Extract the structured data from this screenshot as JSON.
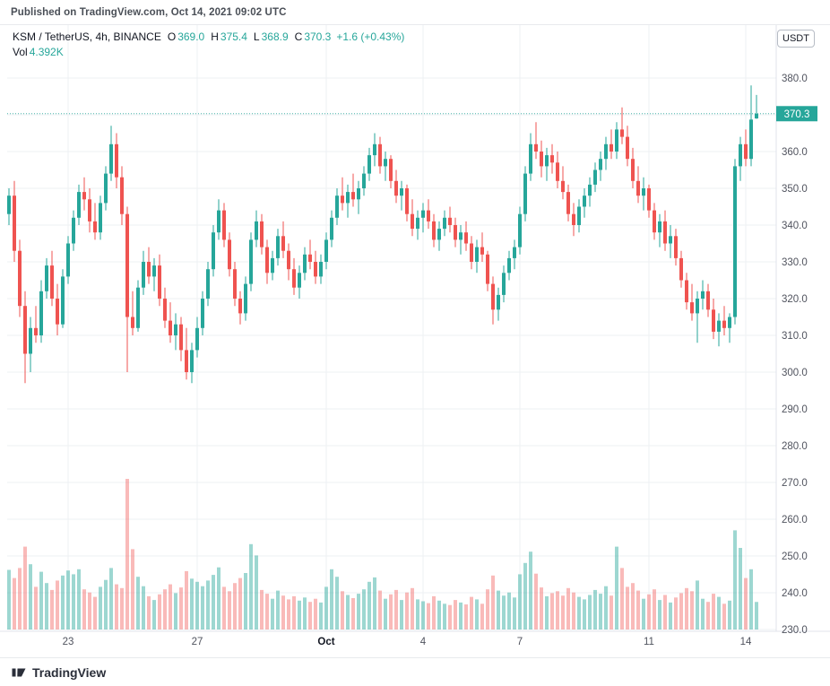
{
  "header": {
    "published_text": "Published on TradingView.com, Oct 14, 2021 09:02 UTC"
  },
  "legend": {
    "title": "KSM / TetherUS, 4h, BINANCE",
    "ohlc": [
      {
        "label": "O",
        "value": "369.0"
      },
      {
        "label": "H",
        "value": "375.4"
      },
      {
        "label": "L",
        "value": "368.9"
      },
      {
        "label": "C",
        "value": "370.3"
      }
    ],
    "change": "+1.6 (+0.43%)",
    "volume_label": "Vol",
    "volume_value": "4.392K"
  },
  "price_axis": {
    "currency_button": "USDT",
    "last_price_badge": "370.3"
  },
  "footer": {
    "brand": "TradingView"
  },
  "colors": {
    "up": "#26a69a",
    "down": "#ef5350",
    "vol_up": "rgba(38,166,154,0.45)",
    "vol_down": "rgba(239,83,80,0.40)",
    "grid": "#eef0f3",
    "axis_line": "#e0e3eb",
    "axis_text": "#50535e",
    "major_text": "#131722",
    "badge": "#26a69a",
    "badge_text": "#ffffff"
  },
  "chart_data": {
    "type": "candlestick",
    "title": "KSM / TetherUS, 4h, BINANCE",
    "price_axis": {
      "min": 230,
      "max": 380,
      "step": 10,
      "unit": "USDT"
    },
    "last_price": 370.3,
    "x_ticks": [
      {
        "i": 11,
        "label": "23"
      },
      {
        "i": 35,
        "label": "27"
      },
      {
        "i": 59,
        "label": "Oct",
        "major": true
      },
      {
        "i": 77,
        "label": "4"
      },
      {
        "i": 95,
        "label": "7"
      },
      {
        "i": 119,
        "label": "11"
      },
      {
        "i": 137,
        "label": "14"
      }
    ],
    "candles": [
      [
        343,
        350,
        340,
        348,
        9500
      ],
      [
        348,
        352,
        330,
        333,
        8200
      ],
      [
        333,
        336,
        315,
        318,
        9800
      ],
      [
        318,
        322,
        297,
        305,
        13200
      ],
      [
        305,
        315,
        300,
        312,
        10400
      ],
      [
        312,
        318,
        308,
        310,
        6800
      ],
      [
        310,
        325,
        308,
        322,
        9200
      ],
      [
        322,
        331,
        320,
        329,
        7400
      ],
      [
        329,
        333,
        318,
        320,
        6300
      ],
      [
        320,
        324,
        310,
        313,
        7800
      ],
      [
        313,
        328,
        312,
        326,
        8600
      ],
      [
        326,
        337,
        324,
        335,
        9400
      ],
      [
        335,
        344,
        333,
        342,
        8800
      ],
      [
        342,
        351,
        340,
        349,
        9600
      ],
      [
        349,
        353,
        344,
        347,
        6400
      ],
      [
        347,
        350,
        338,
        341,
        5900
      ],
      [
        341,
        346,
        336,
        338,
        5200
      ],
      [
        338,
        348,
        336,
        346,
        6800
      ],
      [
        346,
        356,
        344,
        354,
        7900
      ],
      [
        354,
        367,
        352,
        362,
        9800
      ],
      [
        362,
        365,
        350,
        353,
        7200
      ],
      [
        353,
        356,
        340,
        343,
        6600
      ],
      [
        343,
        345,
        300,
        315,
        24000
      ],
      [
        315,
        322,
        310,
        312,
        12800
      ],
      [
        312,
        325,
        311,
        323,
        8400
      ],
      [
        323,
        333,
        321,
        330,
        6900
      ],
      [
        330,
        334,
        324,
        326,
        5300
      ],
      [
        326,
        331,
        322,
        329,
        4700
      ],
      [
        329,
        332,
        318,
        320,
        5600
      ],
      [
        320,
        323,
        312,
        314,
        6400
      ],
      [
        314,
        319,
        308,
        310,
        7200
      ],
      [
        310,
        316,
        306,
        313,
        5800
      ],
      [
        313,
        315,
        303,
        306,
        6700
      ],
      [
        306,
        312,
        298,
        300,
        9300
      ],
      [
        300,
        308,
        297,
        306,
        8100
      ],
      [
        306,
        315,
        304,
        312,
        7600
      ],
      [
        312,
        322,
        310,
        320,
        6900
      ],
      [
        320,
        330,
        318,
        328,
        7800
      ],
      [
        328,
        340,
        326,
        338,
        8700
      ],
      [
        338,
        347,
        336,
        344,
        9900
      ],
      [
        344,
        346,
        334,
        336,
        6800
      ],
      [
        336,
        338,
        326,
        328,
        6100
      ],
      [
        328,
        330,
        318,
        320,
        7400
      ],
      [
        320,
        322,
        313,
        316,
        8200
      ],
      [
        316,
        326,
        314,
        324,
        9000
      ],
      [
        324,
        338,
        322,
        336,
        13600
      ],
      [
        336,
        344,
        334,
        341,
        11800
      ],
      [
        341,
        343,
        332,
        334,
        6300
      ],
      [
        334,
        336,
        324,
        327,
        5700
      ],
      [
        327,
        333,
        325,
        331,
        4900
      ],
      [
        331,
        339,
        329,
        337,
        6200
      ],
      [
        337,
        341,
        331,
        333,
        5400
      ],
      [
        333,
        335,
        325,
        328,
        4800
      ],
      [
        328,
        331,
        321,
        323,
        5300
      ],
      [
        323,
        329,
        320,
        327,
        4600
      ],
      [
        327,
        334,
        325,
        332,
        5100
      ],
      [
        332,
        336,
        328,
        330,
        4400
      ],
      [
        330,
        333,
        324,
        326,
        4900
      ],
      [
        326,
        332,
        324,
        330,
        4300
      ],
      [
        330,
        338,
        328,
        336,
        6800
      ],
      [
        336,
        344,
        334,
        342,
        9600
      ],
      [
        342,
        350,
        340,
        348,
        8400
      ],
      [
        348,
        353,
        344,
        346,
        6100
      ],
      [
        346,
        351,
        342,
        349,
        5500
      ],
      [
        349,
        354,
        345,
        347,
        5000
      ],
      [
        347,
        352,
        343,
        350,
        5700
      ],
      [
        350,
        356,
        348,
        354,
        6400
      ],
      [
        354,
        361,
        352,
        359,
        7600
      ],
      [
        359,
        365,
        356,
        362,
        8300
      ],
      [
        362,
        364,
        354,
        356,
        6200
      ],
      [
        356,
        360,
        352,
        358,
        4900
      ],
      [
        358,
        359,
        350,
        352,
        5600
      ],
      [
        352,
        355,
        346,
        348,
        6300
      ],
      [
        348,
        352,
        344,
        350,
        4700
      ],
      [
        350,
        351,
        341,
        343,
        5900
      ],
      [
        343,
        347,
        337,
        339,
        6600
      ],
      [
        339,
        344,
        336,
        342,
        4800
      ],
      [
        342,
        346,
        338,
        344,
        4500
      ],
      [
        344,
        347,
        339,
        341,
        4200
      ],
      [
        341,
        343,
        334,
        336,
        5300
      ],
      [
        336,
        341,
        333,
        339,
        4600
      ],
      [
        339,
        344,
        337,
        342,
        4100
      ],
      [
        342,
        345,
        338,
        340,
        3900
      ],
      [
        340,
        342,
        334,
        336,
        4700
      ],
      [
        336,
        340,
        332,
        338,
        4300
      ],
      [
        338,
        341,
        333,
        335,
        4000
      ],
      [
        335,
        337,
        328,
        330,
        5200
      ],
      [
        330,
        336,
        327,
        334,
        4800
      ],
      [
        334,
        338,
        330,
        332,
        4100
      ],
      [
        332,
        333,
        322,
        324,
        6400
      ],
      [
        324,
        326,
        313,
        317,
        8600
      ],
      [
        317,
        323,
        314,
        321,
        6200
      ],
      [
        321,
        329,
        319,
        327,
        5400
      ],
      [
        327,
        333,
        325,
        331,
        5900
      ],
      [
        331,
        336,
        328,
        334,
        5100
      ],
      [
        334,
        345,
        332,
        343,
        8800
      ],
      [
        343,
        356,
        341,
        354,
        10600
      ],
      [
        354,
        365,
        352,
        362,
        12400
      ],
      [
        362,
        368,
        358,
        360,
        8900
      ],
      [
        360,
        363,
        353,
        356,
        6700
      ],
      [
        356,
        361,
        352,
        359,
        5300
      ],
      [
        359,
        362,
        354,
        357,
        5800
      ],
      [
        357,
        360,
        350,
        352,
        6100
      ],
      [
        352,
        356,
        347,
        349,
        5400
      ],
      [
        349,
        351,
        341,
        343,
        6600
      ],
      [
        343,
        346,
        337,
        340,
        5900
      ],
      [
        340,
        347,
        338,
        345,
        5200
      ],
      [
        345,
        350,
        342,
        348,
        4800
      ],
      [
        348,
        353,
        345,
        351,
        5500
      ],
      [
        351,
        357,
        349,
        355,
        6300
      ],
      [
        355,
        360,
        352,
        358,
        5700
      ],
      [
        358,
        364,
        355,
        362,
        6900
      ],
      [
        362,
        366,
        358,
        360,
        5400
      ],
      [
        360,
        368,
        358,
        366,
        13200
      ],
      [
        366,
        372,
        362,
        364,
        9800
      ],
      [
        364,
        367,
        356,
        358,
        6800
      ],
      [
        358,
        361,
        350,
        352,
        7400
      ],
      [
        352,
        356,
        346,
        348,
        6200
      ],
      [
        348,
        353,
        344,
        350,
        4900
      ],
      [
        350,
        351,
        342,
        344,
        5600
      ],
      [
        344,
        346,
        336,
        338,
        6400
      ],
      [
        338,
        343,
        334,
        341,
        4700
      ],
      [
        341,
        344,
        333,
        335,
        5500
      ],
      [
        335,
        340,
        331,
        337,
        4300
      ],
      [
        337,
        339,
        329,
        331,
        5100
      ],
      [
        331,
        333,
        323,
        325,
        5800
      ],
      [
        325,
        327,
        317,
        319,
        6600
      ],
      [
        319,
        324,
        314,
        316,
        6100
      ],
      [
        316,
        322,
        308,
        320,
        7800
      ],
      [
        320,
        325,
        317,
        322,
        4900
      ],
      [
        322,
        324,
        315,
        317,
        4400
      ],
      [
        317,
        320,
        309,
        311,
        5700
      ],
      [
        311,
        316,
        307,
        314,
        5200
      ],
      [
        314,
        318,
        310,
        312,
        4100
      ],
      [
        312,
        316,
        308,
        315,
        4600
      ],
      [
        315,
        358,
        313,
        356,
        15800
      ],
      [
        356,
        364,
        352,
        362,
        13000
      ],
      [
        362,
        366,
        356,
        358,
        8200
      ],
      [
        358,
        378,
        356,
        368.7,
        9600
      ],
      [
        369.0,
        375.4,
        368.9,
        370.3,
        4392
      ]
    ]
  }
}
